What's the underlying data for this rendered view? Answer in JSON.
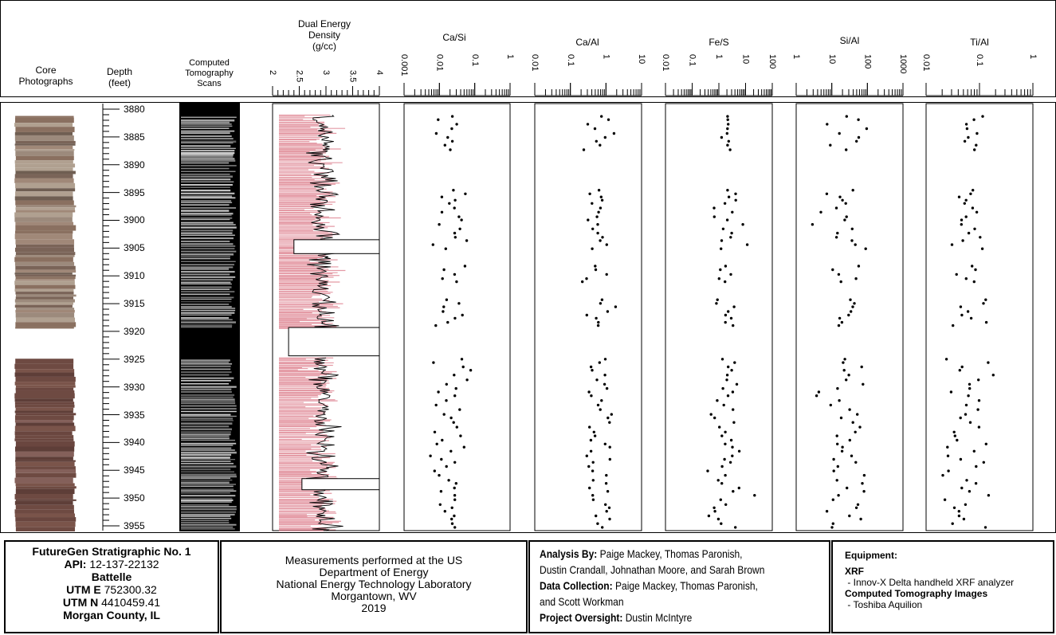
{
  "headers": {
    "core": [
      "Core",
      "Photographs"
    ],
    "depth": [
      "Depth",
      "(feet)"
    ],
    "ct": [
      "Computed",
      "Tomography",
      "Scans"
    ],
    "density": [
      "Dual Energy",
      "Density",
      "(g/cc)"
    ],
    "ratios": [
      "Ca/Si",
      "Ca/Al",
      "Fe/S",
      "Si/Al",
      "Ti/Al"
    ]
  },
  "density_ticks": [
    "2",
    "2.5",
    "3",
    "3.5",
    "4"
  ],
  "ratio_ticks": {
    "Ca/Si": [
      "0.001",
      "0.01",
      "0.1",
      "1"
    ],
    "Ca/Al": [
      "0.01",
      "0.1",
      "1",
      "10"
    ],
    "Fe/S": [
      "0.01",
      "0.1",
      "1",
      "10",
      "100"
    ],
    "Si/Al": [
      "1",
      "10",
      "100",
      "1000"
    ],
    "Ti/Al": [
      "0.01",
      "0.1",
      "1"
    ]
  },
  "depth_labels": [
    "3880",
    "3885",
    "3890",
    "3895",
    "3900",
    "3905",
    "3910",
    "3915",
    "3920",
    "3925",
    "3930",
    "3935",
    "3940",
    "3945",
    "3950",
    "3955"
  ],
  "chart_data": {
    "type": "scatter",
    "ylabel": "Depth (feet)",
    "ylim": [
      3879,
      3956
    ],
    "intervals": [
      [
        3880.5,
        3919.5
      ],
      [
        3924.2,
        3956
      ]
    ],
    "series": [
      {
        "name": "Ca/Si",
        "scale": "log",
        "xlim": [
          0.001,
          1
        ],
        "median": 0.02,
        "spread": 0.35
      },
      {
        "name": "Ca/Al",
        "scale": "log",
        "xlim": [
          0.01,
          10
        ],
        "median": 0.6,
        "spread": 0.3
      },
      {
        "name": "Fe/S",
        "scale": "log",
        "xlim": [
          0.01,
          100
        ],
        "median": 2,
        "spread": 0.5
      },
      {
        "name": "Si/Al",
        "scale": "log",
        "xlim": [
          1,
          1000
        ],
        "median": 25,
        "spread": 0.45
      },
      {
        "name": "Ti/Al",
        "scale": "log",
        "xlim": [
          0.01,
          1
        ],
        "median": 0.06,
        "spread": 0.3
      }
    ],
    "density": {
      "name": "Dual Energy Density",
      "unit": "g/cc",
      "xlim": [
        2,
        4
      ],
      "mean": 2.95,
      "spread": 0.2
    }
  },
  "footer": {
    "well": {
      "title": "FutureGen Stratigraphic No. 1",
      "api_label": "API:",
      "api_value": "12-137-22132",
      "org": "Battelle",
      "utme_label": "UTM E",
      "utme_value": "752300.32",
      "utmn_label": "UTM N",
      "utmn_value": "4410459.41",
      "county": "Morgan County, IL"
    },
    "lab": {
      "lines": [
        "Measurements performed at the US",
        "Department of Energy",
        "National Energy Technology Laboratory",
        "Morgantown, WV",
        "2019"
      ]
    },
    "credits": {
      "analysis_label": "Analysis By:",
      "analysis_value1": "Paige Mackey, Thomas Paronish,",
      "analysis_value2": "Dustin Crandall, Johnathan Moore, and Sarah Brown",
      "collection_label": "Data Collection:",
      "collection_value1": "Paige Mackey, Thomas Paronish,",
      "collection_value2": "and Scott Workman",
      "oversight_label": "Project Oversight:",
      "oversight_value": "Dustin McIntyre"
    },
    "equipment": {
      "title": "Equipment:",
      "xrf_label": "XRF",
      "xrf_item": " - Innov-X Delta handheld XRF analyzer",
      "ct_label": "Computed Tomography Images",
      "ct_item": " - Toshiba Aquilion"
    }
  }
}
